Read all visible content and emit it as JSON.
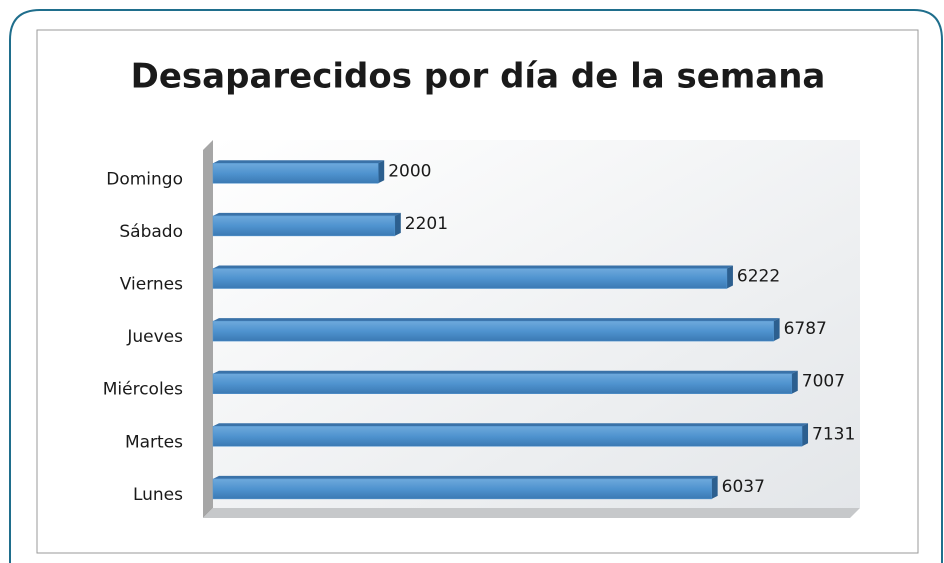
{
  "chart_data": {
    "type": "bar",
    "orientation": "horizontal",
    "title": "Desaparecidos por día de la semana",
    "categories": [
      "Domingo",
      "Sábado",
      "Viernes",
      "Jueves",
      "Miércoles",
      "Martes",
      "Lunes"
    ],
    "values": [
      2000,
      2201,
      6222,
      6787,
      7007,
      7131,
      6037
    ],
    "color": "#4f93cf"
  }
}
